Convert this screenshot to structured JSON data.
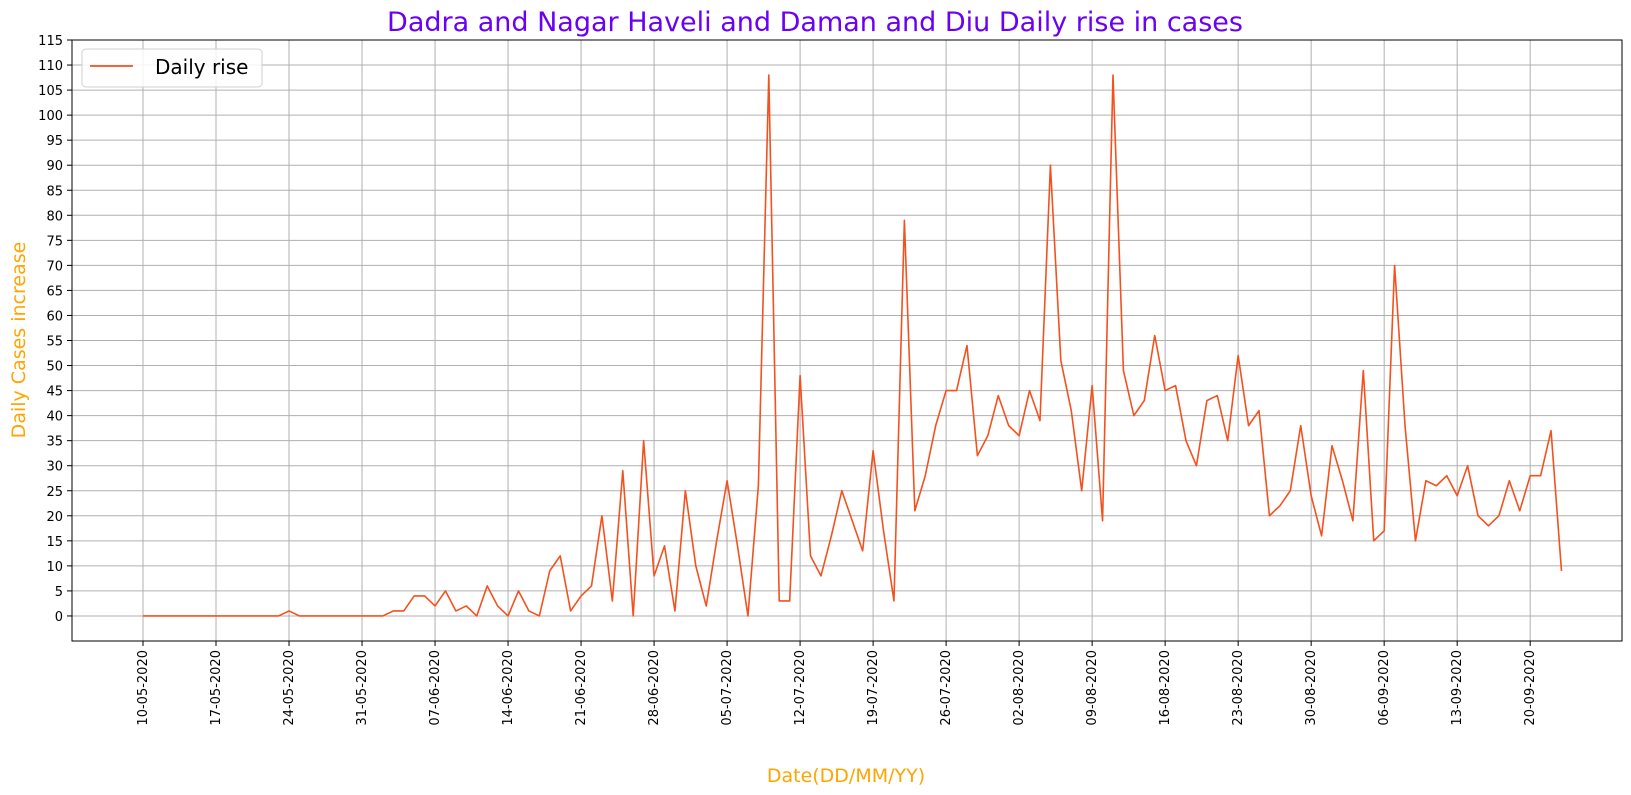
{
  "chart_data": {
    "type": "line",
    "title": "Dadra and Nagar Haveli and Daman and Diu Daily rise in cases",
    "xlabel": "Date(DD/MM/YY)",
    "ylabel": "Daily Cases increase",
    "x_start": "10-05-2020",
    "x_ticks": [
      "10-05-2020",
      "17-05-2020",
      "24-05-2020",
      "31-05-2020",
      "07-06-2020",
      "14-06-2020",
      "21-06-2020",
      "28-06-2020",
      "05-07-2020",
      "12-07-2020",
      "19-07-2020",
      "26-07-2020",
      "02-08-2020",
      "09-08-2020",
      "16-08-2020",
      "23-08-2020",
      "30-08-2020",
      "06-09-2020",
      "13-09-2020",
      "20-09-2020"
    ],
    "y_ticks": [
      0,
      5,
      10,
      15,
      20,
      25,
      30,
      35,
      40,
      45,
      50,
      55,
      60,
      65,
      70,
      75,
      80,
      85,
      90,
      95,
      100,
      105,
      110,
      115
    ],
    "ylim": [
      -5,
      115
    ],
    "grid": true,
    "legend_position": "top-left",
    "series": [
      {
        "name": "Daily rise",
        "color": "#f4511e",
        "values": [
          0,
          0,
          0,
          0,
          0,
          0,
          0,
          0,
          0,
          0,
          0,
          0,
          0,
          0,
          1,
          0,
          0,
          0,
          0,
          0,
          0,
          0,
          0,
          0,
          1,
          1,
          4,
          4,
          2,
          5,
          1,
          2,
          0,
          6,
          2,
          0,
          5,
          1,
          0,
          9,
          12,
          1,
          4,
          6,
          20,
          3,
          29,
          0,
          35,
          8,
          14,
          1,
          25,
          10,
          2,
          15,
          27,
          14,
          0,
          26,
          108,
          3,
          3,
          48,
          12,
          8,
          16,
          25,
          19,
          13,
          33,
          17,
          3,
          79,
          21,
          28,
          38,
          45,
          45,
          54,
          32,
          36,
          44,
          38,
          36,
          45,
          39,
          90,
          51,
          41,
          25,
          46,
          19,
          108,
          49,
          40,
          43,
          56,
          45,
          46,
          35,
          30,
          43,
          44,
          35,
          52,
          38,
          41,
          20,
          22,
          25,
          38,
          24,
          16,
          34,
          27,
          19,
          49,
          15,
          17,
          70,
          38,
          15,
          27,
          26,
          28,
          24,
          30,
          20,
          18,
          20,
          27,
          21,
          28,
          28,
          37,
          9
        ]
      }
    ]
  },
  "colors": {
    "title": "#6a00f4",
    "axis_label": "#ffa500",
    "grid": "#b0b0b0"
  }
}
